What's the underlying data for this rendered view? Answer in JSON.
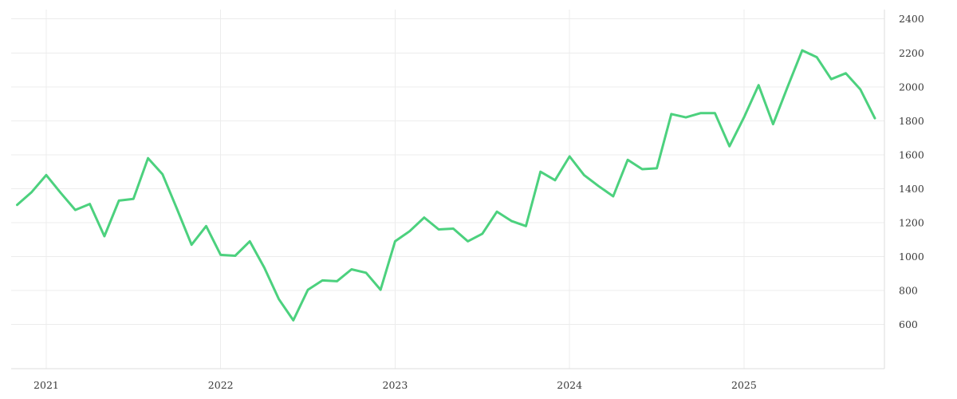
{
  "page": {
    "background": "#ffffff"
  },
  "chart_data": {
    "type": "line",
    "title": "",
    "xlabel": "",
    "ylabel": "",
    "legend_position": "none",
    "grid": true,
    "y_axis_side": "right",
    "x": [
      "2020-11",
      "2020-12",
      "2021-01",
      "2021-02",
      "2021-03",
      "2021-04",
      "2021-05",
      "2021-06",
      "2021-07",
      "2021-08",
      "2021-09",
      "2021-10",
      "2021-11",
      "2021-12",
      "2022-01",
      "2022-02",
      "2022-03",
      "2022-04",
      "2022-05",
      "2022-06",
      "2022-07",
      "2022-08",
      "2022-09",
      "2022-10",
      "2022-11",
      "2022-12",
      "2023-01",
      "2023-02",
      "2023-03",
      "2023-04",
      "2023-05",
      "2023-06",
      "2023-07",
      "2023-08",
      "2023-09",
      "2023-10",
      "2023-11",
      "2023-12",
      "2024-01",
      "2024-02",
      "2024-03",
      "2024-04",
      "2024-05",
      "2024-06",
      "2024-07",
      "2024-08",
      "2024-09",
      "2024-10",
      "2024-11",
      "2024-12",
      "2025-01",
      "2025-02",
      "2025-03",
      "2025-04",
      "2025-05",
      "2025-06",
      "2025-07",
      "2025-08",
      "2025-09",
      "2025-10"
    ],
    "series": [
      {
        "name": "value",
        "color": "#4cd17e",
        "values": [
          1305,
          1380,
          1480,
          1375,
          1275,
          1310,
          1120,
          1330,
          1340,
          1580,
          1485,
          1280,
          1070,
          1180,
          1010,
          1005,
          1090,
          935,
          750,
          625,
          805,
          860,
          855,
          925,
          905,
          805,
          1090,
          1150,
          1230,
          1160,
          1165,
          1090,
          1135,
          1265,
          1210,
          1180,
          1500,
          1450,
          1590,
          1480,
          1415,
          1355,
          1570,
          1515,
          1520,
          1840,
          1820,
          1845,
          1845,
          1650,
          1820,
          2010,
          1780,
          2000,
          2215,
          2175,
          2045,
          2080,
          1985,
          1815
        ]
      }
    ],
    "x_tick_labels": [
      "2021",
      "2022",
      "2023",
      "2024",
      "2025"
    ],
    "x_tick_months": [
      "2021-01",
      "2022-01",
      "2023-01",
      "2024-01",
      "2025-01"
    ],
    "y_ticks": [
      600,
      800,
      1000,
      1200,
      1400,
      1600,
      1800,
      2000,
      2200,
      2400
    ],
    "ylim": [
      340,
      2455
    ],
    "colors": {
      "line": "#4cd17e",
      "grid": "#ececec",
      "axis_border": "#dedede",
      "tick_label": "#3a3a3a",
      "background": "#ffffff"
    }
  }
}
